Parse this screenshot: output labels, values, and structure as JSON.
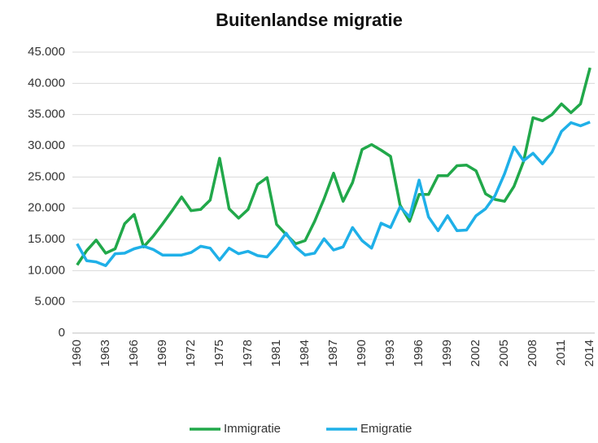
{
  "chart_data": {
    "type": "line",
    "title": "Buitenlandse migratie",
    "categories": [
      "1960",
      null,
      null,
      "1963",
      null,
      null,
      "1966",
      null,
      null,
      "1969",
      null,
      null,
      "1972",
      null,
      null,
      "1975",
      null,
      null,
      "1978",
      null,
      null,
      "1981",
      null,
      null,
      "1984",
      null,
      null,
      "1987",
      null,
      null,
      "1990",
      null,
      null,
      "1993",
      null,
      null,
      "1996",
      null,
      null,
      "1999",
      null,
      null,
      "2002",
      null,
      null,
      "2005",
      null,
      null,
      "2008",
      null,
      null,
      "2011",
      null,
      null,
      "2014"
    ],
    "series": [
      {
        "name": "Immigratie",
        "color": "#21a84a",
        "values": [
          10900,
          13200,
          14900,
          12800,
          13500,
          17500,
          19000,
          13800,
          15500,
          17500,
          19600,
          21800,
          19600,
          19800,
          21300,
          28000,
          19900,
          18400,
          19800,
          23800,
          24900,
          17400,
          15800,
          14300,
          14800,
          17900,
          21500,
          25600,
          21100,
          24100,
          29400,
          30200,
          29300,
          28300,
          20500,
          17900,
          22200,
          22200,
          25200,
          25200,
          26800,
          26900,
          26000,
          22300,
          21400,
          21100,
          23500,
          27500,
          34500,
          34000,
          35000,
          36700,
          35300,
          36700,
          42500
        ]
      },
      {
        "name": "Emigratie",
        "color": "#1fb0e8",
        "values": [
          14300,
          11600,
          11400,
          10800,
          12700,
          12800,
          13500,
          13900,
          13400,
          12500,
          12500,
          12500,
          12900,
          13900,
          13600,
          11700,
          13600,
          12700,
          13100,
          12400,
          12200,
          13900,
          16000,
          13800,
          12500,
          12800,
          15100,
          13300,
          13800,
          16900,
          14800,
          13600,
          17600,
          16900,
          20200,
          18600,
          24500,
          18600,
          16400,
          18800,
          16400,
          16500,
          18800,
          19900,
          22000,
          25500,
          29800,
          27600,
          28800,
          27100,
          29000,
          32300,
          33700,
          33200,
          33800
        ]
      }
    ],
    "ylim": [
      0,
      45000
    ],
    "yticks": [
      0,
      {
        "value": 5000,
        "label": "5.000"
      },
      {
        "value": 10000,
        "label": "10.000"
      },
      {
        "value": 15000,
        "label": "15.000"
      },
      {
        "value": 20000,
        "label": "20.000"
      },
      {
        "value": 25000,
        "label": "25.000"
      },
      {
        "value": 30000,
        "label": "30.000"
      },
      {
        "value": 35000,
        "label": "35.000"
      },
      {
        "value": 40000,
        "label": "40.000"
      },
      {
        "value": 45000,
        "label": "45.000"
      }
    ],
    "grid": true,
    "legend": "bottom"
  }
}
